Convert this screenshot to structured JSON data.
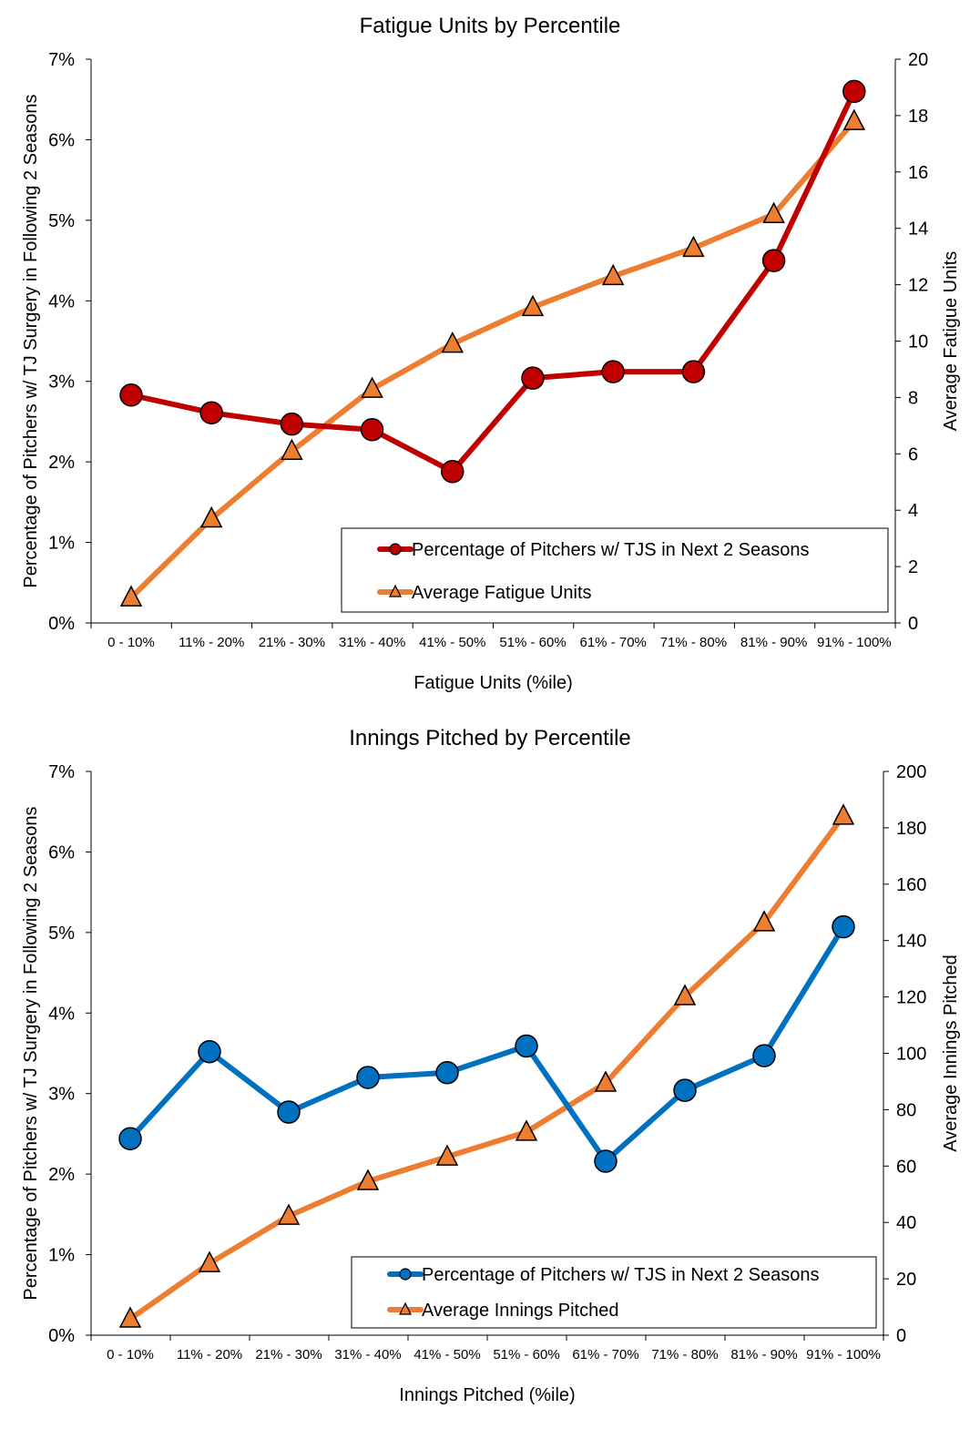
{
  "chart_data": [
    {
      "type": "line",
      "title": "Fatigue Units by Percentile",
      "xlabel": "Fatigue Units (%ile)",
      "ylabel": "Percentage of Pitchers w/ TJ Surgery in Following 2 Seasons",
      "y2label": "Average Fatigue Units",
      "categories": [
        "0 - 10%",
        "11% - 20%",
        "21% - 30%",
        "31% - 40%",
        "41% - 50%",
        "51% - 60%",
        "61% - 70%",
        "71% - 80%",
        "81% - 90%",
        "91% - 100%"
      ],
      "ylim": [
        0,
        7
      ],
      "yticks": [
        "0%",
        "1%",
        "2%",
        "3%",
        "4%",
        "5%",
        "6%",
        "7%"
      ],
      "y2lim": [
        0,
        20
      ],
      "y2ticks": [
        "0",
        "2",
        "4",
        "6",
        "8",
        "10",
        "12",
        "14",
        "16",
        "18",
        "20"
      ],
      "legend": "bottom-right",
      "grid": false,
      "series": [
        {
          "name": "Percentage of Pitchers w/ TJS in Next 2 Seasons",
          "axis": "left",
          "marker": "circle",
          "color": "#C00000",
          "values": [
            2.83,
            2.61,
            2.47,
            2.4,
            1.88,
            3.04,
            3.12,
            3.12,
            4.5,
            6.6
          ]
        },
        {
          "name": "Average Fatigue Units",
          "axis": "right",
          "marker": "triangle",
          "color": "#ED7D31",
          "values": [
            0.9,
            3.7,
            6.1,
            8.3,
            9.9,
            11.2,
            12.3,
            13.3,
            14.5,
            17.8
          ]
        }
      ]
    },
    {
      "type": "line",
      "title": "Innings Pitched by Percentile",
      "xlabel": "Innings Pitched (%ile)",
      "ylabel": "Percentage of Pitchers w/ TJ Surgery in Following 2 Seasons",
      "y2label": "Average Innings Pitched",
      "categories": [
        "0 - 10%",
        "11% - 20%",
        "21% - 30%",
        "31% - 40%",
        "41% - 50%",
        "51% - 60%",
        "61% - 70%",
        "71% - 80%",
        "81% - 90%",
        "91% - 100%"
      ],
      "ylim": [
        0,
        7
      ],
      "yticks": [
        "0%",
        "1%",
        "2%",
        "3%",
        "4%",
        "5%",
        "6%",
        "7%"
      ],
      "y2lim": [
        0,
        200
      ],
      "y2ticks": [
        "0",
        "20",
        "40",
        "60",
        "80",
        "100",
        "120",
        "140",
        "160",
        "180",
        "200"
      ],
      "legend": "bottom-right",
      "grid": false,
      "series": [
        {
          "name": "Percentage of Pitchers w/ TJS in Next 2 Seasons",
          "axis": "left",
          "marker": "circle",
          "color": "#0070C0",
          "values": [
            2.44,
            3.52,
            2.77,
            3.2,
            3.26,
            3.59,
            2.16,
            3.04,
            3.47,
            5.07
          ]
        },
        {
          "name": "Average Innings Pitched",
          "axis": "right",
          "marker": "triangle",
          "color": "#ED7D31",
          "values": [
            5.8,
            25.5,
            42.3,
            54.6,
            63.3,
            72.1,
            89.5,
            120.2,
            146.4,
            184.2
          ]
        }
      ]
    }
  ]
}
